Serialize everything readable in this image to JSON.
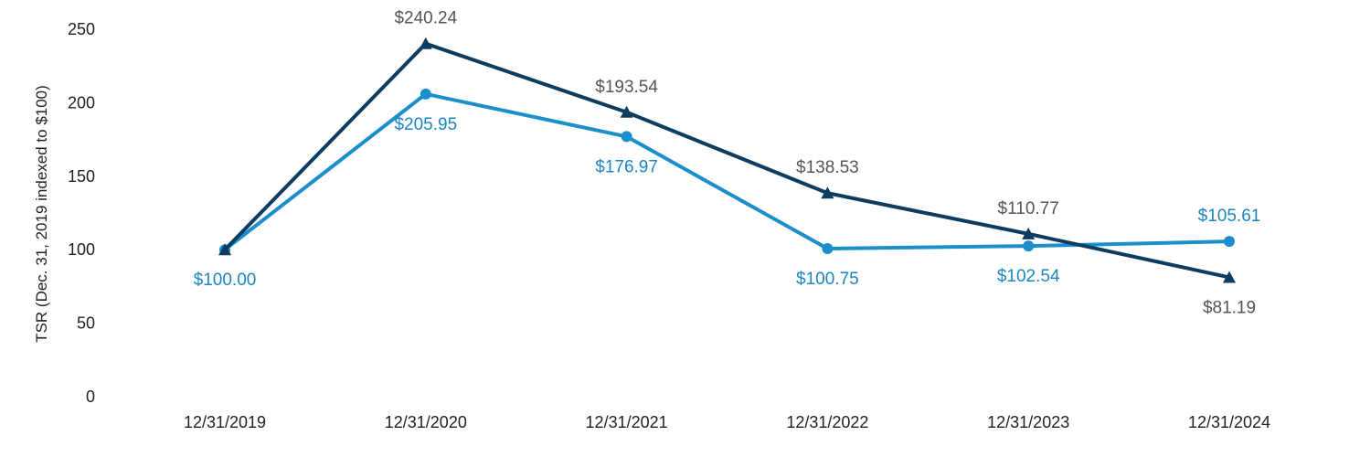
{
  "chart_data": {
    "type": "line",
    "title": "",
    "xlabel": "",
    "ylabel": "TSR (Dec. 31, 2019 indexed to $100)",
    "ylim": [
      0,
      250
    ],
    "yticks": [
      0,
      50,
      100,
      150,
      200,
      250
    ],
    "grid": false,
    "categories": [
      "12/31/2019",
      "12/31/2020",
      "12/31/2021",
      "12/31/2022",
      "12/31/2023",
      "12/31/2024"
    ],
    "series": [
      {
        "name": "Series A (triangle markers)",
        "color": "#0d3c61",
        "marker": "triangle",
        "values": [
          100.0,
          240.24,
          193.54,
          138.53,
          110.77,
          81.19
        ],
        "labels": [
          "",
          "$240.24",
          "$193.54",
          "$138.53",
          "$110.77",
          "$81.19"
        ],
        "label_position": [
          "none",
          "above",
          "above",
          "above",
          "above",
          "below"
        ]
      },
      {
        "name": "Series B (circle markers)",
        "color": "#1b8fcc",
        "marker": "circle",
        "values": [
          100.0,
          205.95,
          176.97,
          100.75,
          102.54,
          105.61
        ],
        "labels": [
          "$100.00",
          "$205.95",
          "$176.97",
          "$100.75",
          "$102.54",
          "$105.61"
        ],
        "label_position": [
          "below",
          "below",
          "below",
          "below",
          "below",
          "above"
        ]
      }
    ]
  }
}
